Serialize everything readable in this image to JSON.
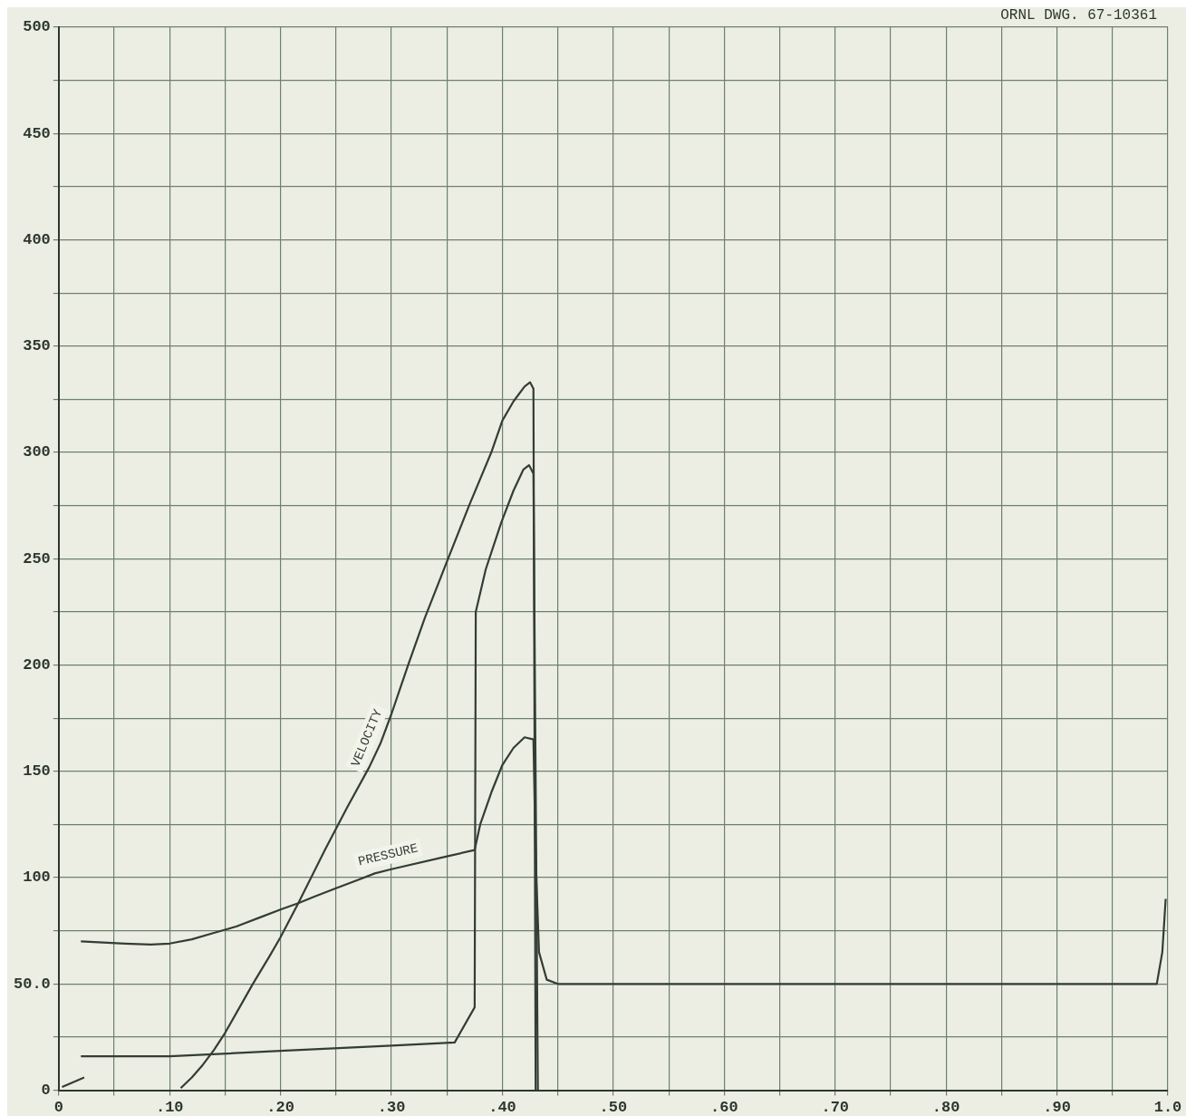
{
  "chart_data": {
    "type": "line",
    "annotations": [
      "ORNL DWG. 67-10361"
    ],
    "xlim": [
      0,
      1.0
    ],
    "ylim": [
      0,
      500
    ],
    "xticks": [
      0,
      {
        "value": 0.05,
        "label": null
      },
      {
        "value": 0.1,
        "label": ".10"
      },
      {
        "value": 0.15,
        "label": null
      },
      {
        "value": 0.2,
        "label": ".20"
      },
      {
        "value": 0.25,
        "label": null
      },
      {
        "value": 0.3,
        "label": ".30"
      },
      {
        "value": 0.35,
        "label": null
      },
      {
        "value": 0.4,
        "label": ".40"
      },
      {
        "value": 0.45,
        "label": null
      },
      {
        "value": 0.5,
        "label": ".50"
      },
      {
        "value": 0.55,
        "label": null
      },
      {
        "value": 0.6,
        "label": ".60"
      },
      {
        "value": 0.65,
        "label": null
      },
      {
        "value": 0.7,
        "label": ".70"
      },
      {
        "value": 0.75,
        "label": null
      },
      {
        "value": 0.8,
        "label": ".80"
      },
      {
        "value": 0.85,
        "label": null
      },
      {
        "value": 0.9,
        "label": ".90"
      },
      {
        "value": 0.95,
        "label": null
      },
      {
        "value": 1.0,
        "label": "1.0"
      }
    ],
    "yticks": [
      0,
      {
        "value": 25,
        "label": null
      },
      {
        "value": 50,
        "label": "50.0"
      },
      {
        "value": 75,
        "label": null
      },
      100,
      {
        "value": 125,
        "label": null
      },
      150,
      {
        "value": 175,
        "label": null
      },
      200,
      {
        "value": 225,
        "label": null
      },
      250,
      {
        "value": 275,
        "label": null
      },
      300,
      {
        "value": 325,
        "label": null
      },
      350,
      {
        "value": 375,
        "label": null
      },
      400,
      {
        "value": 425,
        "label": null
      },
      450,
      {
        "value": 475,
        "label": null
      },
      500
    ],
    "grid": true,
    "legend": false,
    "marker": "none",
    "line_style": "solid",
    "series": [
      {
        "name": "VELOCITY",
        "color": "#333d36",
        "x": [
          0.11,
          0.12,
          0.13,
          0.14,
          0.15,
          0.175,
          0.19,
          0.2,
          0.216,
          0.24,
          0.26,
          0.28,
          0.29,
          0.3,
          0.315,
          0.33,
          0.351,
          0.37,
          0.39,
          0.4,
          0.41,
          0.42,
          0.425,
          0.428,
          0.43
        ],
        "values": [
          1,
          6,
          12,
          19,
          27,
          50,
          63,
          72,
          88,
          113,
          133,
          152,
          163,
          177,
          200,
          222,
          250,
          275,
          300,
          315,
          324,
          331,
          333,
          330,
          0
        ]
      },
      {
        "name": "PRESSURE",
        "color": "#333d36",
        "x": [
          0.02,
          0.04,
          0.06,
          0.083,
          0.1,
          0.12,
          0.14,
          0.16,
          0.18,
          0.2,
          0.216,
          0.23,
          0.25,
          0.27,
          0.285,
          0.3,
          0.35,
          0.375,
          0.38,
          0.39,
          0.4,
          0.41,
          0.42,
          0.428,
          0.43,
          0.433,
          0.44,
          0.45,
          0.99,
          0.995,
          0.998
        ],
        "values": [
          70,
          69.5,
          69,
          68.5,
          69,
          71,
          74,
          77,
          81,
          85,
          88,
          91,
          95,
          99,
          102,
          104,
          110,
          113,
          125,
          140,
          153,
          161,
          166,
          165,
          110,
          65,
          52,
          50,
          50,
          65,
          90
        ]
      },
      {
        "color": "#333d36",
        "x": [
          0.02,
          0.1,
          0.2,
          0.3,
          0.357,
          0.375,
          0.376,
          0.385,
          0.399,
          0.41,
          0.419,
          0.424,
          0.428,
          0.432
        ],
        "values": [
          16,
          16,
          18.5,
          21,
          22.5,
          39,
          225,
          245,
          267,
          282,
          292,
          294,
          290,
          0
        ]
      },
      {
        "color": "#333d36",
        "x": [
          0.003,
          0.023
        ],
        "values": [
          1.5,
          6
        ]
      }
    ]
  }
}
